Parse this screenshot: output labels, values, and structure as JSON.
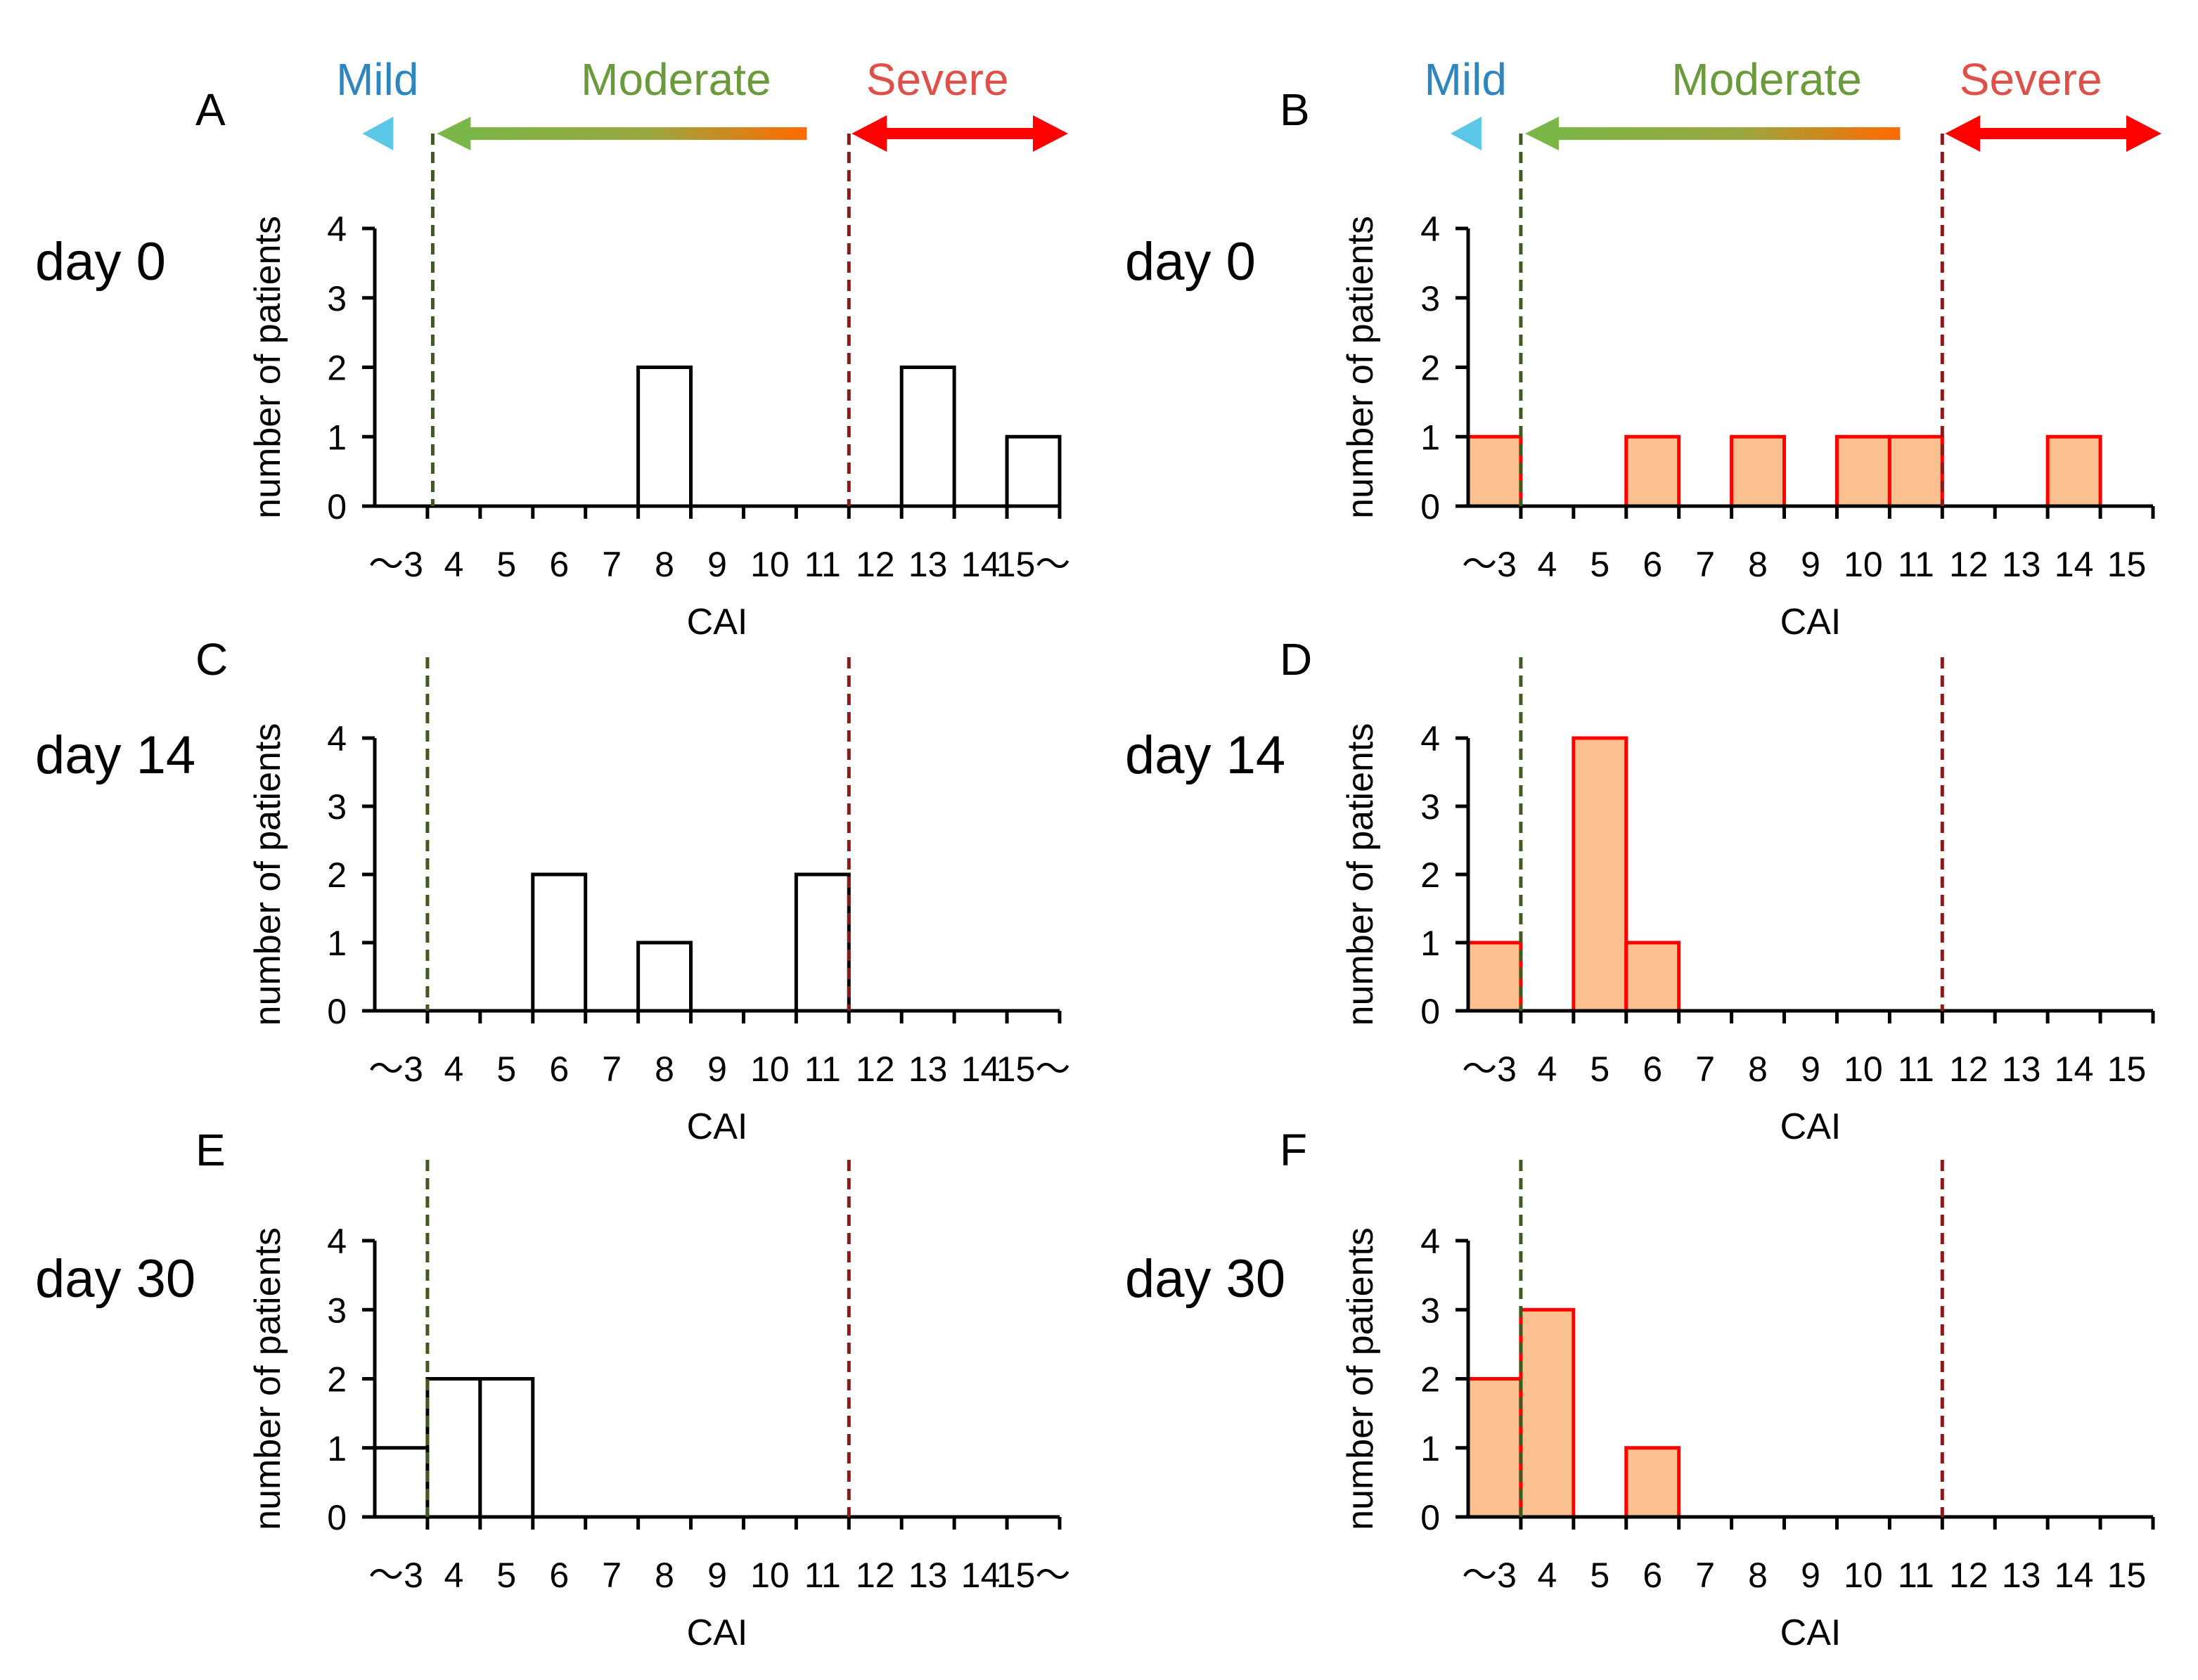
{
  "severity": {
    "mild": "Mild",
    "moderate": "Moderate",
    "severe": "Severe",
    "colors": {
      "mild": "#2e86c1",
      "moderate": "#6a9a3a",
      "severe": "#e0504a",
      "mild_arrow": "#5bc8e8",
      "moderate_arrow": "#7ab648",
      "severe_arrow": "#ff0000",
      "moderate_threshold": "#3f5a1e",
      "severe_threshold": "#8b1a1a"
    }
  },
  "chart_data": [
    {
      "type": "bar",
      "panel": "A",
      "day_label": "day 0",
      "xlabel": "CAI",
      "ylabel": "number of patients",
      "xticks": [
        "〜3",
        "4",
        "5",
        "6",
        "7",
        "8",
        "9",
        "10",
        "11",
        "12",
        "13",
        "14",
        "15〜"
      ],
      "yticks": [
        "0",
        "1",
        "2",
        "3",
        "4"
      ],
      "ylim": [
        0,
        4
      ],
      "bars": [
        {
          "start": 5,
          "end": 6,
          "value": 2
        },
        {
          "start": 10,
          "end": 11,
          "value": 2
        },
        {
          "start": 12,
          "end": 13,
          "value": 1
        }
      ],
      "threshold_moderate": 1.1,
      "threshold_severe": 9,
      "bar_fill": "#ffffff",
      "bar_stroke": "#000000",
      "show_severity_header": true
    },
    {
      "type": "bar",
      "panel": "B",
      "day_label": "day 0",
      "xlabel": "CAI",
      "ylabel": "number of patients",
      "xticks": [
        "〜3",
        "4",
        "5",
        "6",
        "7",
        "8",
        "9",
        "10",
        "11",
        "12",
        "13",
        "14",
        "15"
      ],
      "yticks": [
        "0",
        "1",
        "2",
        "3",
        "4"
      ],
      "ylim": [
        0,
        4
      ],
      "bars": [
        {
          "start": 0,
          "end": 1,
          "value": 1
        },
        {
          "start": 3,
          "end": 4,
          "value": 1
        },
        {
          "start": 5,
          "end": 6,
          "value": 1
        },
        {
          "start": 7,
          "end": 8,
          "value": 1
        },
        {
          "start": 8,
          "end": 9,
          "value": 1
        },
        {
          "start": 11,
          "end": 12,
          "value": 1
        }
      ],
      "threshold_moderate": 1,
      "threshold_severe": 9,
      "bar_fill": "#fac090",
      "bar_stroke": "#ff0000",
      "show_severity_header": true
    },
    {
      "type": "bar",
      "panel": "C",
      "day_label": "day 14",
      "xlabel": "CAI",
      "ylabel": "number of patients",
      "xticks": [
        "〜3",
        "4",
        "5",
        "6",
        "7",
        "8",
        "9",
        "10",
        "11",
        "12",
        "13",
        "14",
        "15〜"
      ],
      "yticks": [
        "0",
        "1",
        "2",
        "3",
        "4"
      ],
      "ylim": [
        0,
        4
      ],
      "bars": [
        {
          "start": 3,
          "end": 4,
          "value": 2
        },
        {
          "start": 5,
          "end": 6,
          "value": 1
        },
        {
          "start": 8,
          "end": 9,
          "value": 2
        }
      ],
      "threshold_moderate": 1,
      "threshold_severe": 9,
      "bar_fill": "#ffffff",
      "bar_stroke": "#000000",
      "show_severity_header": false
    },
    {
      "type": "bar",
      "panel": "D",
      "day_label": "day 14",
      "xlabel": "CAI",
      "ylabel": "number of patients",
      "xticks": [
        "〜3",
        "4",
        "5",
        "6",
        "7",
        "8",
        "9",
        "10",
        "11",
        "12",
        "13",
        "14",
        "15"
      ],
      "yticks": [
        "0",
        "1",
        "2",
        "3",
        "4"
      ],
      "ylim": [
        0,
        4
      ],
      "bars": [
        {
          "start": 0,
          "end": 1,
          "value": 1
        },
        {
          "start": 2,
          "end": 3,
          "value": 4
        },
        {
          "start": 3,
          "end": 4,
          "value": 1
        }
      ],
      "threshold_moderate": 1,
      "threshold_severe": 9,
      "bar_fill": "#fac090",
      "bar_stroke": "#ff0000",
      "show_severity_header": false
    },
    {
      "type": "bar",
      "panel": "E",
      "day_label": "day 30",
      "xlabel": "CAI",
      "ylabel": "number of patients",
      "xticks": [
        "〜3",
        "4",
        "5",
        "6",
        "7",
        "8",
        "9",
        "10",
        "11",
        "12",
        "13",
        "14",
        "15〜"
      ],
      "yticks": [
        "0",
        "1",
        "2",
        "3",
        "4"
      ],
      "ylim": [
        0,
        4
      ],
      "bars": [
        {
          "start": 0,
          "end": 1,
          "value": 1
        },
        {
          "start": 1,
          "end": 2,
          "value": 2
        },
        {
          "start": 2,
          "end": 3,
          "value": 2
        }
      ],
      "threshold_moderate": 1,
      "threshold_severe": 9,
      "bar_fill": "#ffffff",
      "bar_stroke": "#000000",
      "show_severity_header": false
    },
    {
      "type": "bar",
      "panel": "F",
      "day_label": "day 30",
      "xlabel": "CAI",
      "ylabel": "number of patients",
      "xticks": [
        "〜3",
        "4",
        "5",
        "6",
        "7",
        "8",
        "9",
        "10",
        "11",
        "12",
        "13",
        "14",
        "15"
      ],
      "yticks": [
        "0",
        "1",
        "2",
        "3",
        "4"
      ],
      "ylim": [
        0,
        4
      ],
      "bars": [
        {
          "start": 0,
          "end": 1,
          "value": 2
        },
        {
          "start": 1,
          "end": 2,
          "value": 3
        },
        {
          "start": 3,
          "end": 4,
          "value": 1
        }
      ],
      "threshold_moderate": 1,
      "threshold_severe": 9,
      "bar_fill": "#fac090",
      "bar_stroke": "#ff0000",
      "show_severity_header": false
    }
  ]
}
